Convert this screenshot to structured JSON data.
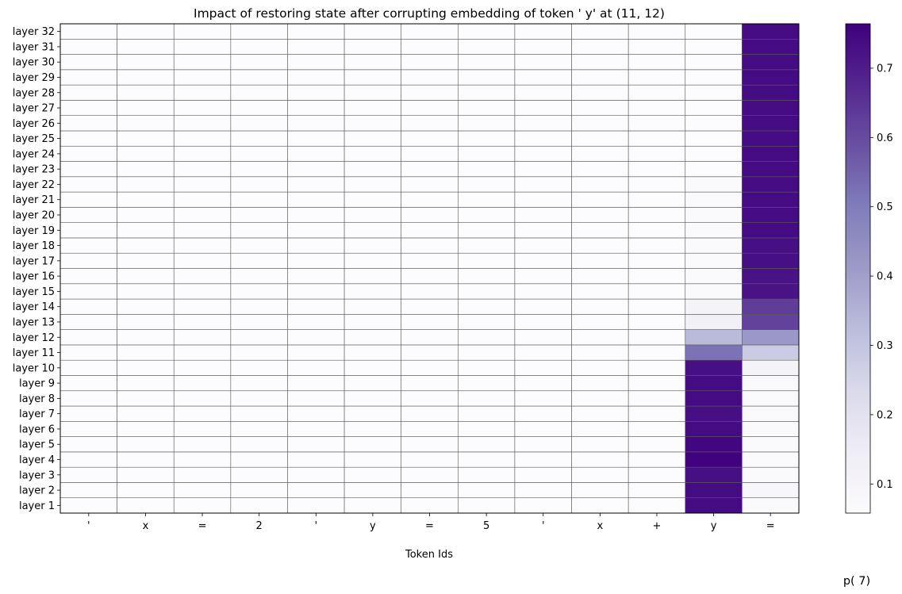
{
  "chart_data": {
    "type": "heatmap",
    "title": "Impact of restoring state after corrupting embedding of token ' y' at (11, 12)",
    "xlabel": "Token Ids",
    "ylabel": "",
    "colorbar_label": "p( 7)",
    "x_categories": [
      "'",
      "x",
      "=",
      "2",
      "'",
      "y",
      "=",
      "5",
      "'",
      "x",
      "+",
      "y",
      "="
    ],
    "y_categories": [
      "layer 1",
      "layer 2",
      "layer 3",
      "layer 4",
      "layer 5",
      "layer 6",
      "layer 7",
      "layer 8",
      "layer 9",
      "layer 10",
      "layer 11",
      "layer 12",
      "layer 13",
      "layer 14",
      "layer 15",
      "layer 16",
      "layer 17",
      "layer 18",
      "layer 19",
      "layer 20",
      "layer 21",
      "layer 22",
      "layer 23",
      "layer 24",
      "layer 25",
      "layer 26",
      "layer 27",
      "layer 28",
      "layer 29",
      "layer 30",
      "layer 31",
      "layer 32"
    ],
    "values": [
      [
        0.06,
        0.06,
        0.06,
        0.06,
        0.06,
        0.06,
        0.06,
        0.06,
        0.06,
        0.06,
        0.06,
        0.74,
        0.07
      ],
      [
        0.06,
        0.06,
        0.06,
        0.06,
        0.06,
        0.06,
        0.06,
        0.06,
        0.06,
        0.06,
        0.06,
        0.74,
        0.09
      ],
      [
        0.06,
        0.06,
        0.06,
        0.06,
        0.06,
        0.06,
        0.06,
        0.06,
        0.06,
        0.06,
        0.06,
        0.73,
        0.07
      ],
      [
        0.06,
        0.06,
        0.06,
        0.06,
        0.06,
        0.06,
        0.06,
        0.06,
        0.06,
        0.06,
        0.06,
        0.76,
        0.07
      ],
      [
        0.06,
        0.06,
        0.06,
        0.06,
        0.06,
        0.06,
        0.06,
        0.06,
        0.06,
        0.06,
        0.06,
        0.75,
        0.07
      ],
      [
        0.06,
        0.06,
        0.06,
        0.06,
        0.06,
        0.06,
        0.06,
        0.06,
        0.06,
        0.06,
        0.06,
        0.74,
        0.07
      ],
      [
        0.06,
        0.06,
        0.06,
        0.06,
        0.06,
        0.06,
        0.06,
        0.06,
        0.06,
        0.06,
        0.06,
        0.73,
        0.08
      ],
      [
        0.06,
        0.06,
        0.06,
        0.06,
        0.06,
        0.06,
        0.06,
        0.06,
        0.06,
        0.06,
        0.06,
        0.74,
        0.08
      ],
      [
        0.06,
        0.06,
        0.06,
        0.06,
        0.06,
        0.06,
        0.06,
        0.06,
        0.06,
        0.06,
        0.06,
        0.74,
        0.08
      ],
      [
        0.06,
        0.06,
        0.06,
        0.06,
        0.06,
        0.06,
        0.06,
        0.06,
        0.06,
        0.06,
        0.06,
        0.73,
        0.11
      ],
      [
        0.06,
        0.06,
        0.06,
        0.06,
        0.06,
        0.06,
        0.06,
        0.06,
        0.06,
        0.06,
        0.06,
        0.52,
        0.28
      ],
      [
        0.06,
        0.06,
        0.06,
        0.06,
        0.06,
        0.06,
        0.06,
        0.06,
        0.06,
        0.06,
        0.06,
        0.33,
        0.42
      ],
      [
        0.06,
        0.06,
        0.06,
        0.06,
        0.06,
        0.06,
        0.06,
        0.06,
        0.06,
        0.06,
        0.06,
        0.13,
        0.62
      ],
      [
        0.06,
        0.06,
        0.06,
        0.06,
        0.06,
        0.06,
        0.06,
        0.06,
        0.06,
        0.06,
        0.06,
        0.11,
        0.63
      ],
      [
        0.06,
        0.06,
        0.06,
        0.06,
        0.06,
        0.06,
        0.06,
        0.06,
        0.06,
        0.06,
        0.06,
        0.07,
        0.72
      ],
      [
        0.06,
        0.06,
        0.06,
        0.06,
        0.06,
        0.06,
        0.06,
        0.06,
        0.06,
        0.06,
        0.06,
        0.07,
        0.72
      ],
      [
        0.06,
        0.06,
        0.06,
        0.06,
        0.06,
        0.06,
        0.06,
        0.06,
        0.06,
        0.06,
        0.06,
        0.07,
        0.73
      ],
      [
        0.06,
        0.06,
        0.06,
        0.06,
        0.06,
        0.06,
        0.06,
        0.06,
        0.06,
        0.06,
        0.06,
        0.07,
        0.73
      ],
      [
        0.06,
        0.06,
        0.06,
        0.06,
        0.06,
        0.06,
        0.06,
        0.06,
        0.06,
        0.06,
        0.06,
        0.07,
        0.74
      ],
      [
        0.06,
        0.06,
        0.06,
        0.06,
        0.06,
        0.06,
        0.06,
        0.06,
        0.06,
        0.06,
        0.06,
        0.07,
        0.74
      ],
      [
        0.06,
        0.06,
        0.06,
        0.06,
        0.06,
        0.06,
        0.06,
        0.06,
        0.06,
        0.06,
        0.06,
        0.07,
        0.74
      ],
      [
        0.06,
        0.06,
        0.06,
        0.06,
        0.06,
        0.06,
        0.06,
        0.06,
        0.06,
        0.06,
        0.06,
        0.07,
        0.74
      ],
      [
        0.06,
        0.06,
        0.06,
        0.06,
        0.06,
        0.06,
        0.06,
        0.06,
        0.06,
        0.06,
        0.06,
        0.06,
        0.74
      ],
      [
        0.06,
        0.06,
        0.06,
        0.06,
        0.06,
        0.06,
        0.06,
        0.06,
        0.06,
        0.06,
        0.06,
        0.06,
        0.74
      ],
      [
        0.06,
        0.06,
        0.06,
        0.06,
        0.06,
        0.06,
        0.06,
        0.06,
        0.06,
        0.06,
        0.06,
        0.06,
        0.74
      ],
      [
        0.06,
        0.06,
        0.06,
        0.06,
        0.06,
        0.06,
        0.06,
        0.06,
        0.06,
        0.06,
        0.06,
        0.06,
        0.74
      ],
      [
        0.06,
        0.06,
        0.06,
        0.06,
        0.06,
        0.06,
        0.06,
        0.06,
        0.06,
        0.06,
        0.06,
        0.06,
        0.74
      ],
      [
        0.06,
        0.06,
        0.06,
        0.06,
        0.06,
        0.06,
        0.06,
        0.06,
        0.06,
        0.06,
        0.06,
        0.06,
        0.74
      ],
      [
        0.06,
        0.06,
        0.06,
        0.06,
        0.06,
        0.06,
        0.06,
        0.06,
        0.06,
        0.06,
        0.06,
        0.06,
        0.74
      ],
      [
        0.06,
        0.06,
        0.06,
        0.06,
        0.06,
        0.06,
        0.06,
        0.06,
        0.06,
        0.06,
        0.06,
        0.06,
        0.74
      ],
      [
        0.06,
        0.06,
        0.06,
        0.06,
        0.06,
        0.06,
        0.06,
        0.06,
        0.06,
        0.06,
        0.06,
        0.06,
        0.74
      ],
      [
        0.06,
        0.06,
        0.06,
        0.06,
        0.06,
        0.06,
        0.06,
        0.06,
        0.06,
        0.06,
        0.06,
        0.06,
        0.74
      ]
    ],
    "vmin": 0.058,
    "vmax": 0.764,
    "colorbar_ticks": [
      0.1,
      0.2,
      0.3,
      0.4,
      0.5,
      0.6,
      0.7
    ],
    "colormap": "Purples",
    "colormap_stops": [
      "#fcfbfd",
      "#efedf5",
      "#dadaeb",
      "#bcbddc",
      "#9e9ac8",
      "#807dba",
      "#6a51a3",
      "#54278f",
      "#3f007d"
    ],
    "grid": true
  }
}
